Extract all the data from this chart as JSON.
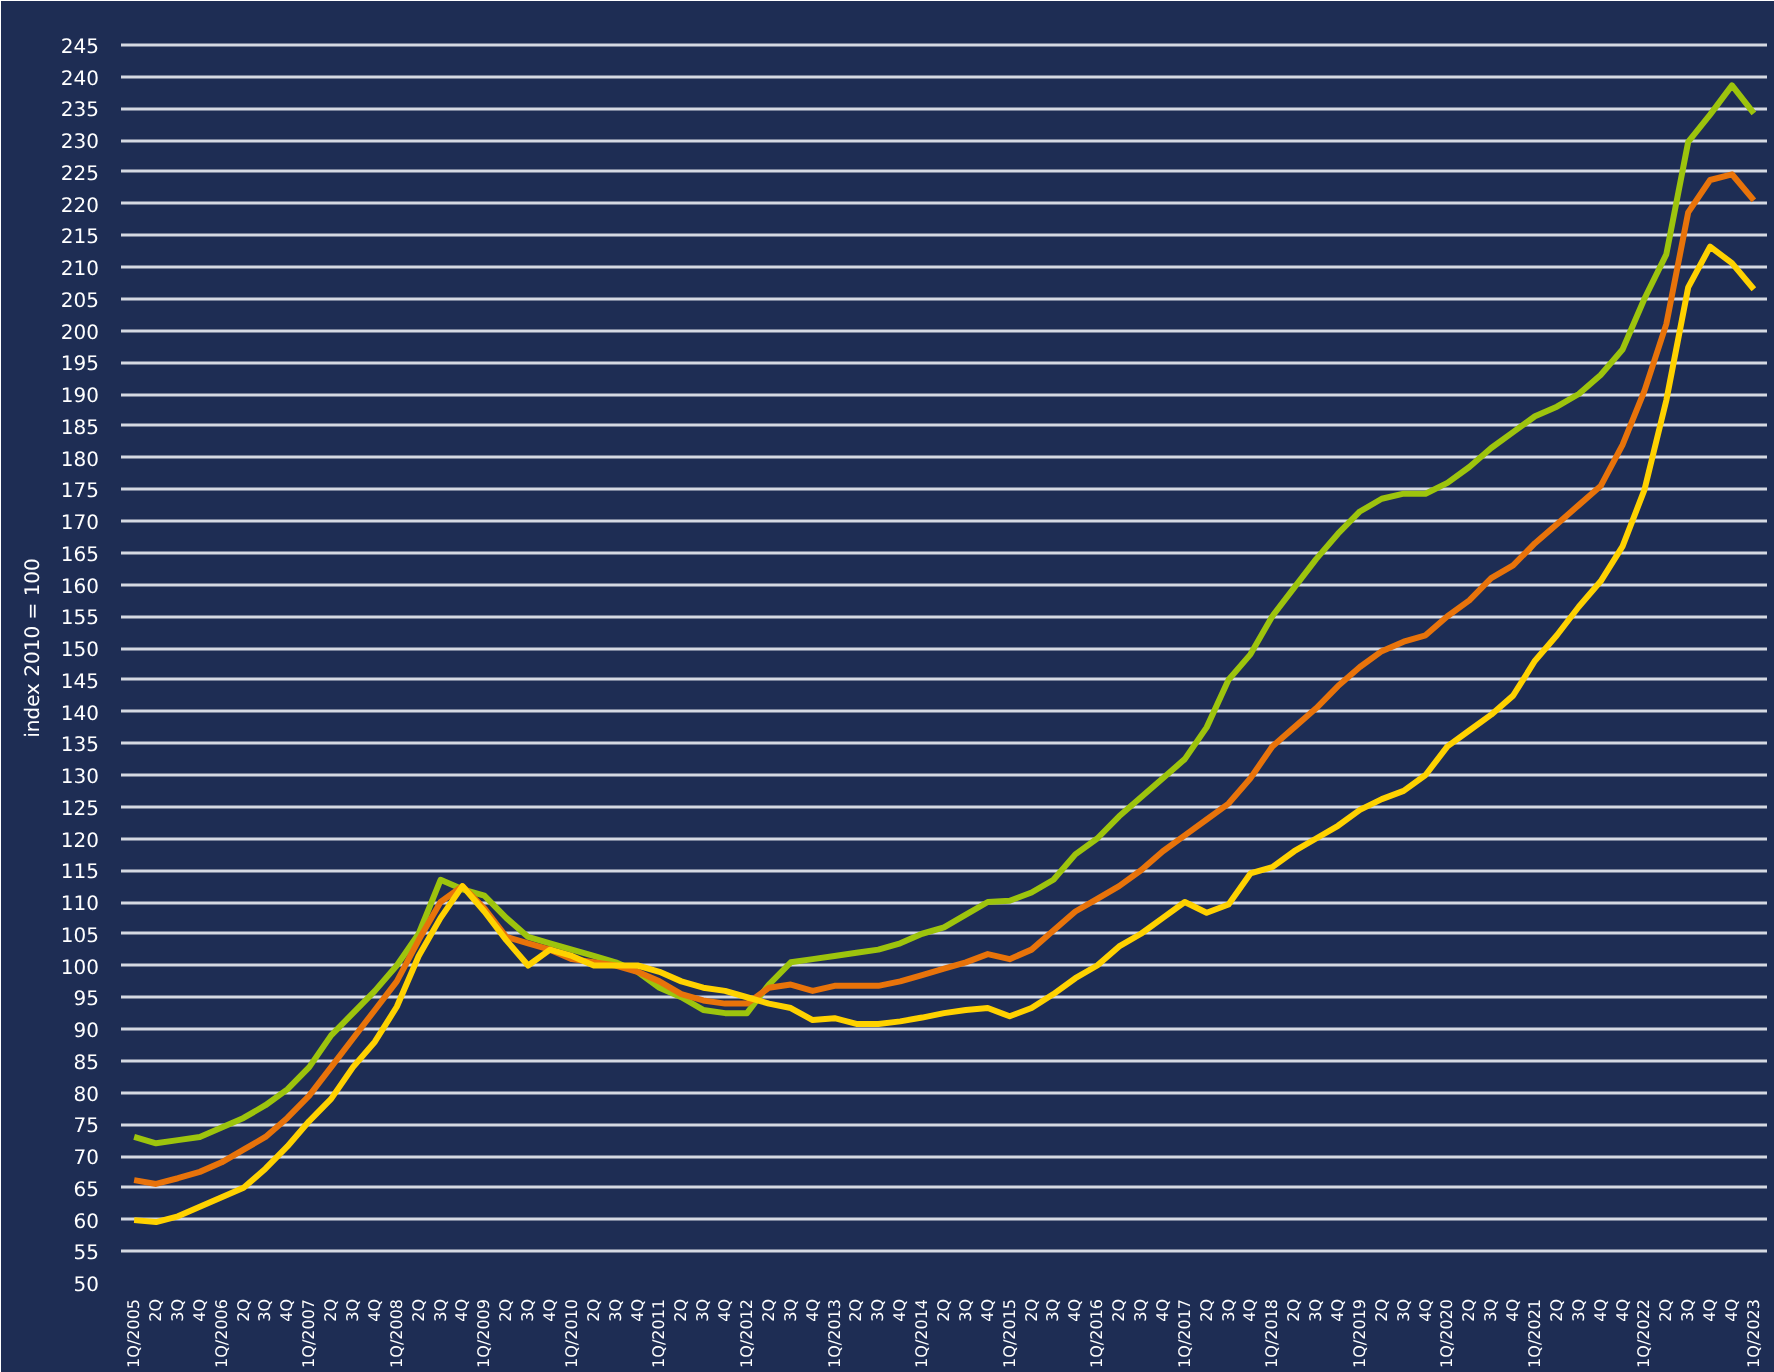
{
  "chart_data": {
    "type": "line",
    "ylabel": "index 2010 = 100",
    "categories": [
      "1Q/2005",
      "2Q",
      "3Q",
      "4Q",
      "1Q/2006",
      "2Q",
      "3Q",
      "4Q",
      "1Q/2007",
      "2Q",
      "3Q",
      "4Q",
      "1Q/2008",
      "2Q",
      "3Q",
      "4Q",
      "1Q/2009",
      "2Q",
      "3Q",
      "4Q",
      "1Q/2010",
      "2Q",
      "3Q",
      "4Q",
      "1Q/2011",
      "2Q",
      "3Q",
      "4Q",
      "1Q/2012",
      "2Q",
      "3Q",
      "4Q",
      "1Q/2013",
      "2Q",
      "3Q",
      "4Q",
      "1Q/2014",
      "2Q",
      "3Q",
      "4Q",
      "1Q/2015",
      "2Q",
      "3Q",
      "4Q",
      "1Q/2016",
      "2Q",
      "3Q",
      "4Q",
      "1Q/2017",
      "2Q",
      "3Q",
      "4Q",
      "1Q/2018",
      "2Q",
      "3Q",
      "4Q",
      "1Q/2019",
      "2Q",
      "3Q",
      "4Q",
      "1Q/2020",
      "2Q",
      "3Q",
      "4Q",
      "1Q/2021",
      "2Q",
      "3Q",
      "4Q",
      "4Q",
      "1Q/2022",
      "2Q",
      "3Q",
      "4Q",
      "4Q",
      "1Q/2023"
    ],
    "series": [
      {
        "color": "#9dc40d",
        "values": [
          73,
          72,
          72.5,
          73,
          74.5,
          76,
          78,
          80.5,
          84,
          89,
          92.5,
          96,
          100,
          105,
          113.5,
          112,
          111,
          107.5,
          104.5,
          103.5,
          102.5,
          101.5,
          100.5,
          99,
          96.5,
          95,
          93,
          92.5,
          92.5,
          97,
          100.5,
          101,
          101.5,
          102,
          102.5,
          103.5,
          105,
          106,
          108,
          110,
          110.2,
          111.5,
          113.5,
          117.5,
          120,
          123.5,
          126.5,
          129.5,
          132.5,
          137.5,
          145,
          149,
          155,
          159.5,
          164,
          168,
          171.5,
          173.5,
          174.3,
          174.3,
          176,
          178.5,
          181.5,
          184,
          186.5,
          188,
          190,
          193,
          197,
          205,
          212,
          229.7,
          234,
          238.6,
          234.2
        ]
      },
      {
        "color": "#e8730a",
        "values": [
          66.2,
          65.6,
          66.5,
          67.5,
          69,
          71,
          73,
          76,
          79.5,
          84,
          88.5,
          93,
          97.5,
          104,
          110,
          112.5,
          109,
          104.5,
          103.5,
          102.5,
          101,
          100.5,
          100,
          99,
          97.5,
          95.5,
          94.5,
          94,
          94,
          96.5,
          97,
          96,
          96.8,
          96.8,
          96.8,
          97.5,
          98.5,
          99.5,
          100.5,
          101.8,
          101,
          102.5,
          105.5,
          108.5,
          110.5,
          112.5,
          115,
          118,
          120.5,
          123,
          125.5,
          129.5,
          134.5,
          137.5,
          140.5,
          144,
          147,
          149.5,
          151,
          152,
          155,
          157.5,
          161,
          163,
          166.5,
          169.5,
          172.5,
          175.5,
          182,
          190.5,
          201,
          218.6,
          223.7,
          224.6,
          220.5
        ]
      },
      {
        "color": "#ffd200",
        "values": [
          59.9,
          59.6,
          60.5,
          62,
          63.5,
          65,
          68,
          71.5,
          75.5,
          79,
          84,
          88,
          93.5,
          101.5,
          107.5,
          112.5,
          108.5,
          104,
          100,
          102.5,
          101.5,
          100,
          100,
          100,
          99,
          97.5,
          96.5,
          96,
          95,
          94,
          93.3,
          91.4,
          91.7,
          90.8,
          90.8,
          91.2,
          91.8,
          92.5,
          93,
          93.3,
          92,
          93.3,
          95.5,
          98,
          100,
          103,
          105,
          107.5,
          110,
          108.3,
          109.6,
          114.5,
          115.5,
          118,
          120,
          122,
          124.5,
          126.2,
          127.5,
          130,
          134.5,
          137,
          139.5,
          142.5,
          148,
          152,
          156.5,
          160.5,
          166,
          174.9,
          189,
          206.8,
          213.2,
          210.6,
          206.5
        ]
      }
    ],
    "ylim": [
      50,
      250
    ],
    "yticks": [
      50,
      55,
      60,
      65,
      70,
      75,
      80,
      85,
      90,
      95,
      100,
      105,
      110,
      115,
      120,
      125,
      130,
      135,
      140,
      145,
      150,
      155,
      160,
      165,
      170,
      175,
      180,
      185,
      190,
      195,
      200,
      205,
      210,
      215,
      220,
      225,
      230,
      235,
      240,
      245,
      {
        "value": 250,
        "label": null
      }
    ],
    "grid": "y",
    "line_style": "solid",
    "marker": "none"
  }
}
